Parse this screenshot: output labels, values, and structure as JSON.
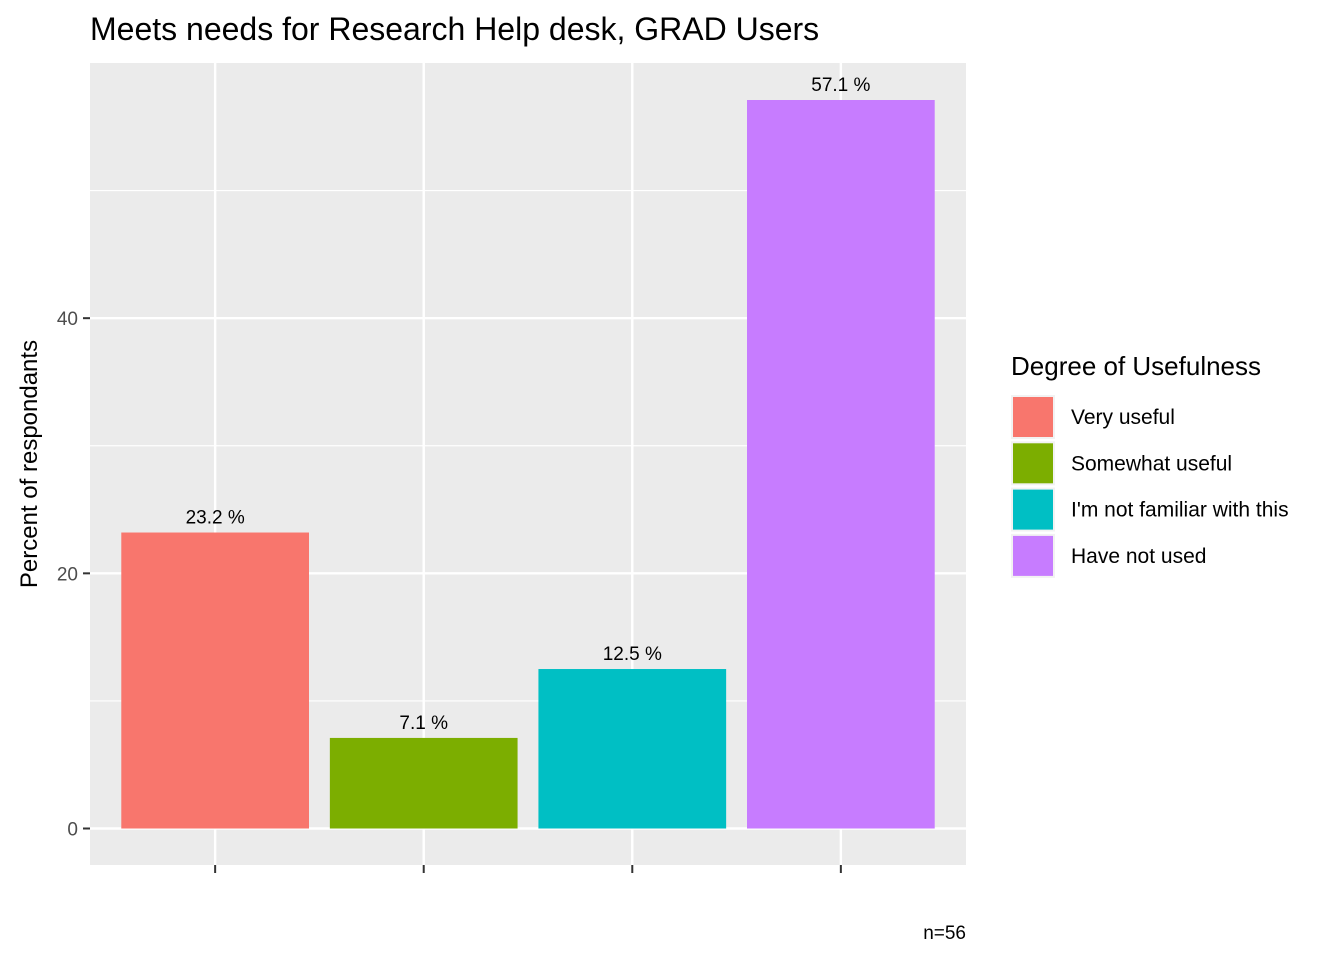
{
  "chart_data": {
    "type": "bar",
    "title": "Meets needs for Research Help desk,  GRAD Users",
    "xlabel": "",
    "ylabel": "Percent of respondants",
    "categories": [
      "Very useful",
      "Somewhat useful",
      "I'm not familiar with this",
      "Have not used"
    ],
    "values": [
      23.2,
      7.1,
      12.5,
      57.1
    ],
    "bar_labels": [
      "23.2 %",
      "7.1 %",
      "12.5 %",
      "57.1 %"
    ],
    "colors": [
      "#F8766D",
      "#7CAE00",
      "#00BFC4",
      "#C77CFF"
    ],
    "y_ticks": [
      0,
      20,
      40
    ],
    "ylim": [
      -2.86,
      60
    ],
    "grid": true,
    "legend": {
      "title": "Degree of Usefulness",
      "placement": "right",
      "entries": [
        "Very useful",
        "Somewhat useful",
        "I'm not familiar with this",
        "Have not used"
      ]
    },
    "caption": "n=56"
  }
}
